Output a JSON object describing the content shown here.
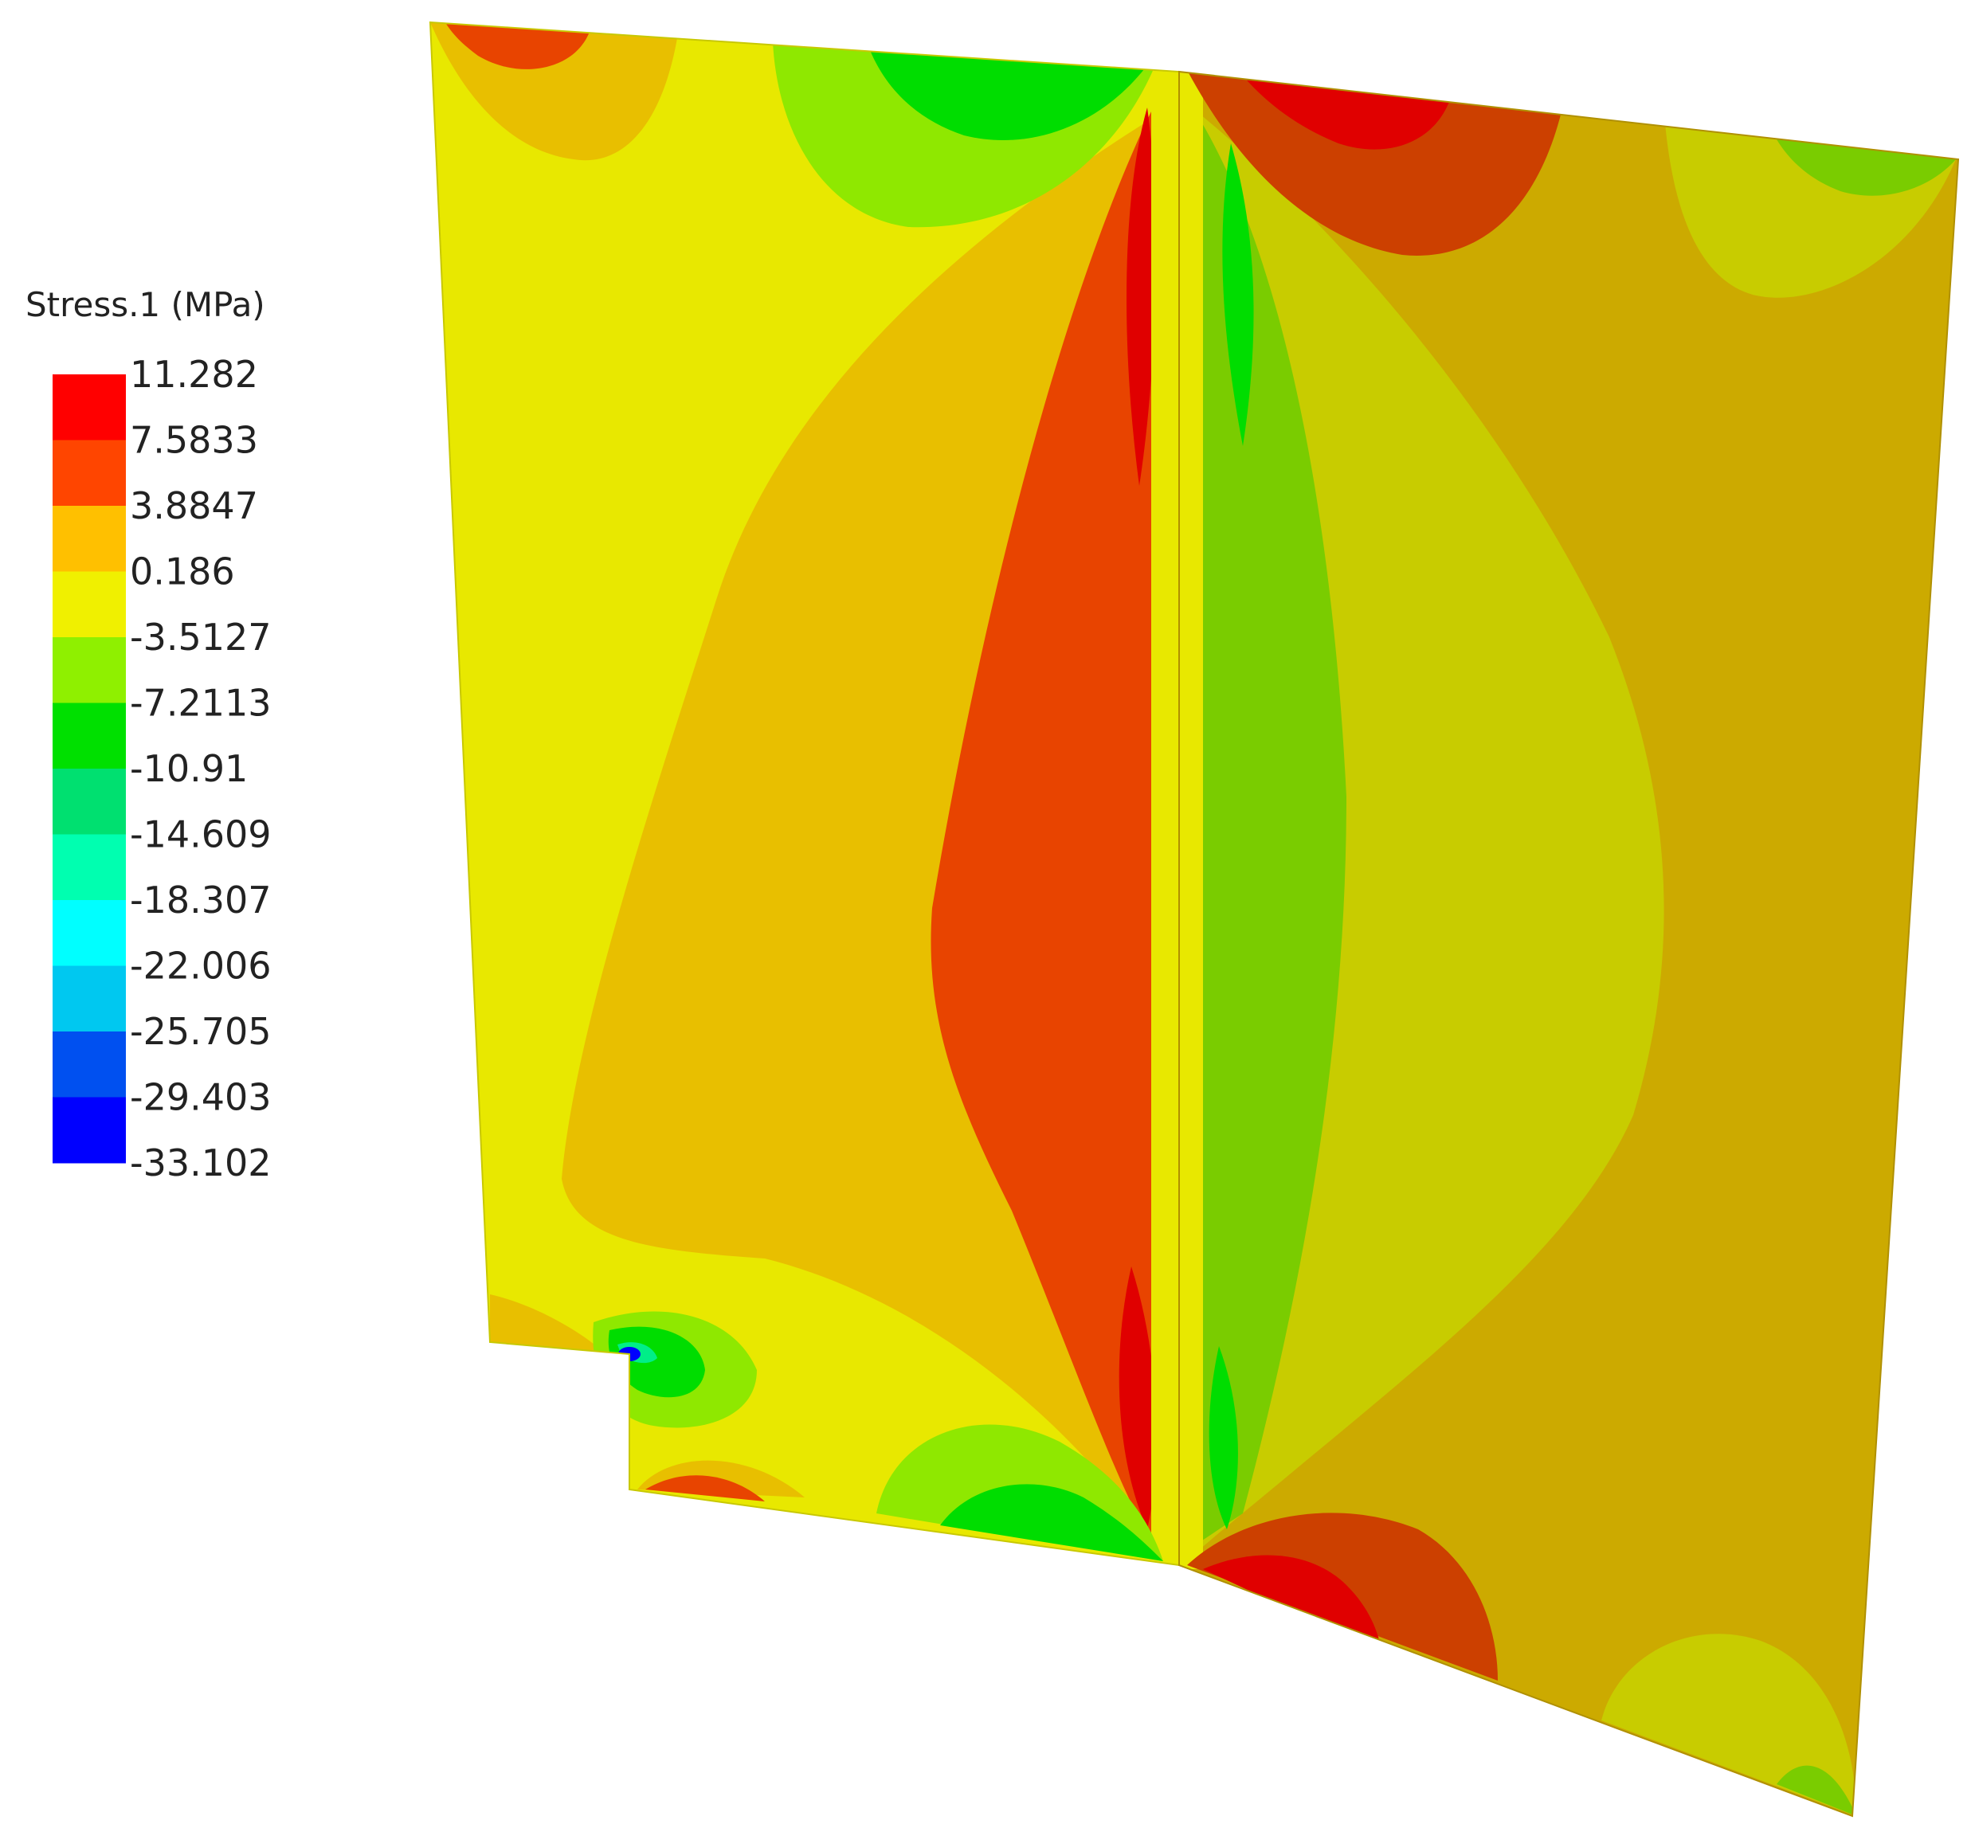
{
  "scalar_bar": {
    "title": "Stress.1 (MPa)",
    "tick_labels": [
      "11.282",
      "7.5833",
      "3.8847",
      "0.186",
      "-3.5127",
      "-7.2113",
      "-10.91",
      "-14.609",
      "-18.307",
      "-22.006",
      "-25.705",
      "-29.403",
      "-33.102"
    ],
    "band_colors": [
      "#ff0000",
      "#ff4500",
      "#ffc000",
      "#f0f000",
      "#8ff000",
      "#00e000",
      "#00e070",
      "#00ffb0",
      "#00ffff",
      "#00c8f0",
      "#0050f0",
      "#0000ff"
    ]
  },
  "contour_colors": {
    "red": "#e00000",
    "red_orange": "#e84400",
    "dark_orange": "#cc4000",
    "orange_gold": "#e8bf00",
    "gold": "#ccaa00",
    "yellow": "#e8e800",
    "olive_yellow": "#c8cc00",
    "yellow_green": "#8fe800",
    "green": "#7acc00",
    "bright_green": "#00dd00",
    "cyan_green": "#00ee88",
    "blue": "#0000ff"
  }
}
